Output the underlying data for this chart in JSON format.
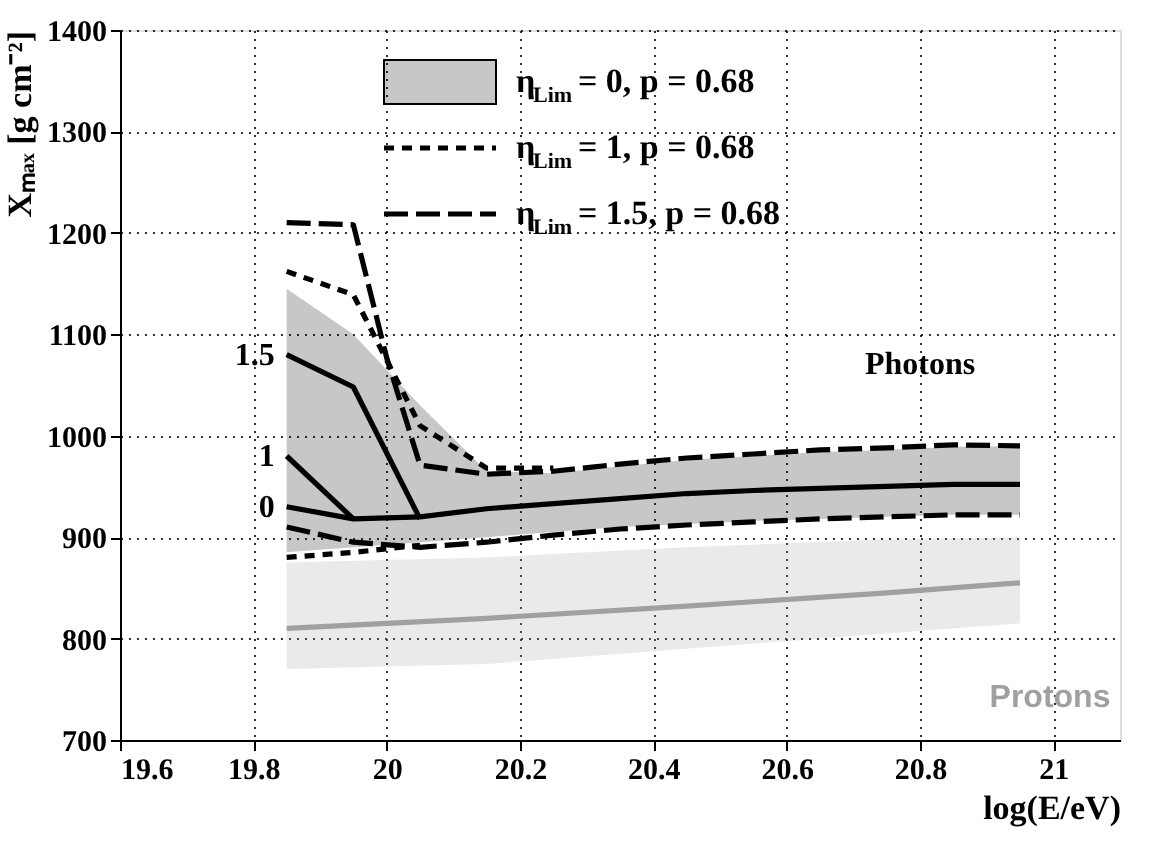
{
  "chart_data": {
    "type": "line",
    "xlabel": "log(E/eV)",
    "ylabel": "Xₘₐₓ [g cm⁻²]",
    "xlim": [
      19.6,
      21.1
    ],
    "xticks": [
      {
        "value": 19.6,
        "label": "19.6"
      },
      19.8,
      20,
      20.2,
      20.4,
      20.6,
      20.8,
      21
    ],
    "ylim": [
      700,
      1400
    ],
    "yticks": [
      700,
      800,
      900,
      1000,
      1100,
      1200,
      1300,
      1400
    ],
    "grid": true,
    "legend": "top right",
    "marker": "none",
    "series": [
      {
        "name": "η$_{Lim}$ = 0, p = 0.68",
        "color": "#000000",
        "line_style": "solid",
        "x": [
          19.85,
          19.95,
          20.05,
          20.15,
          20.25,
          20.35,
          20.45,
          20.55,
          20.65,
          20.75,
          20.85,
          20.95
        ],
        "values": [
          930,
          918,
          920,
          928,
          933,
          938,
          943,
          946,
          948,
          950,
          952,
          952
        ],
        "lower": [
          885,
          890,
          895,
          900,
          905,
          910,
          913,
          916,
          918,
          920,
          922,
          922
        ],
        "upper": [
          1145,
          1100,
          1030,
          965,
          963,
          970,
          976,
          980,
          984,
          986,
          989,
          990
        ]
      },
      {
        "color": "#000000",
        "line_style": "solid",
        "x": [
          19.85,
          19.95
        ],
        "values": [
          980,
          918
        ]
      },
      {
        "color": "#000000",
        "line_style": "solid",
        "x": [
          19.85,
          19.95,
          20.05
        ],
        "values": [
          1080,
          1048,
          918
        ]
      },
      {
        "name": "η$_{Lim}$ = 1, p = 0.68",
        "color": "#000000",
        "line_style": "dashed",
        "x": [
          19.85,
          19.95,
          20.05,
          20.15,
          20.25
        ],
        "values": [
          1162,
          1139,
          1010,
          968,
          968
        ]
      },
      {
        "color": "#000000",
        "line_style": "dashed",
        "x": [
          19.85,
          19.95,
          20.05
        ],
        "values": [
          880,
          885,
          892
        ]
      },
      {
        "name": "η$_{Lim}$ = 1.5, p = 0.68",
        "color": "#000000",
        "line_style": "longdash",
        "x": [
          19.85,
          19.95,
          20.0,
          20.05,
          20.15,
          20.25,
          20.35,
          20.45,
          20.55,
          20.65,
          20.75,
          20.85,
          20.95
        ],
        "values": [
          1210,
          1208,
          1077,
          971,
          962,
          965,
          972,
          978,
          982,
          986,
          988,
          991,
          990
        ]
      },
      {
        "color": "#000000",
        "line_style": "longdash",
        "x": [
          19.85,
          19.95,
          20.05,
          20.15,
          20.25,
          20.35,
          20.45,
          20.55,
          20.65,
          20.75,
          20.85,
          20.95
        ],
        "values": [
          910,
          895,
          890,
          895,
          902,
          908,
          912,
          915,
          918,
          920,
          922,
          922
        ]
      },
      {
        "color": "#a0a0a0",
        "line_style": "solid",
        "x": [
          19.85,
          20.15,
          20.45,
          20.75,
          20.95
        ],
        "values": [
          810,
          820,
          832,
          845,
          855
        ],
        "lower": [
          770,
          775,
          790,
          805,
          815
        ],
        "upper": [
          875,
          880,
          890,
          898,
          900
        ]
      }
    ],
    "annotations": [
      "1.5",
      "1",
      "0",
      "Photons",
      "Protons"
    ]
  }
}
